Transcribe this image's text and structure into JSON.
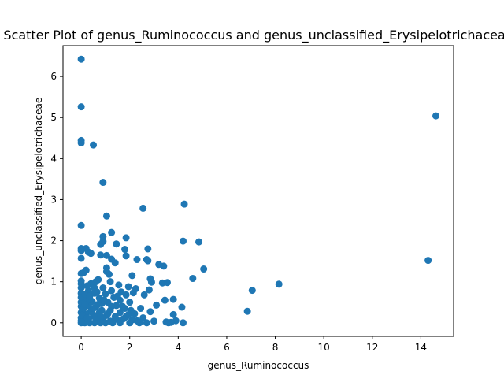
{
  "chart_data": {
    "type": "scatter",
    "title": "Scatter Plot of genus_Ruminococcus and genus_unclassified_Erysipelotrichaceae",
    "xlabel": "genus_Ruminococcus",
    "ylabel": "genus_unclassified_Erysipelotrichaceae",
    "xlim": [
      -0.75,
      15.35
    ],
    "ylim": [
      -0.33,
      6.75
    ],
    "xticks": [
      0,
      2,
      4,
      6,
      8,
      10,
      12,
      14
    ],
    "yticks": [
      0,
      1,
      2,
      3,
      4,
      5,
      6
    ],
    "grid": false,
    "legend": "none",
    "marker_color": "#1f77b4",
    "points": [
      [
        0.0,
        6.42
      ],
      [
        0.0,
        5.26
      ],
      [
        0.0,
        4.44
      ],
      [
        0.0,
        4.38
      ],
      [
        0.5,
        4.33
      ],
      [
        14.62,
        5.04
      ],
      [
        0.9,
        3.42
      ],
      [
        4.25,
        2.89
      ],
      [
        2.55,
        2.79
      ],
      [
        1.05,
        2.6
      ],
      [
        0.0,
        2.37
      ],
      [
        1.25,
        2.2
      ],
      [
        0.9,
        2.1
      ],
      [
        1.85,
        2.07
      ],
      [
        4.2,
        1.99
      ],
      [
        4.85,
        1.97
      ],
      [
        0.9,
        1.98
      ],
      [
        1.45,
        1.92
      ],
      [
        0.8,
        1.91
      ],
      [
        2.75,
        1.8
      ],
      [
        1.8,
        1.79
      ],
      [
        0.0,
        1.81
      ],
      [
        0.2,
        1.81
      ],
      [
        0.0,
        1.76
      ],
      [
        0.3,
        1.72
      ],
      [
        0.4,
        1.69
      ],
      [
        0.8,
        1.65
      ],
      [
        1.05,
        1.64
      ],
      [
        1.85,
        1.63
      ],
      [
        0.0,
        1.57
      ],
      [
        1.25,
        1.55
      ],
      [
        2.3,
        1.54
      ],
      [
        2.7,
        1.54
      ],
      [
        2.75,
        1.51
      ],
      [
        14.3,
        1.52
      ],
      [
        1.4,
        1.46
      ],
      [
        3.2,
        1.42
      ],
      [
        3.4,
        1.38
      ],
      [
        1.05,
        1.34
      ],
      [
        5.05,
        1.31
      ],
      [
        0.2,
        1.28
      ],
      [
        1.05,
        1.25
      ],
      [
        0.1,
        1.22
      ],
      [
        0.0,
        1.2
      ],
      [
        1.15,
        1.18
      ],
      [
        2.1,
        1.15
      ],
      [
        4.6,
        1.08
      ],
      [
        2.85,
        1.07
      ],
      [
        0.7,
        1.05
      ],
      [
        0.6,
        1.0
      ],
      [
        1.2,
        1.0
      ],
      [
        2.9,
        0.99
      ],
      [
        3.35,
        0.97
      ],
      [
        3.55,
        0.98
      ],
      [
        8.15,
        0.94
      ],
      [
        0.4,
        0.95
      ],
      [
        1.55,
        0.92
      ],
      [
        1.95,
        0.88
      ],
      [
        0.9,
        0.85
      ],
      [
        2.25,
        0.83
      ],
      [
        2.8,
        0.8
      ],
      [
        7.05,
        0.79
      ],
      [
        0.3,
        0.78
      ],
      [
        1.25,
        0.78
      ],
      [
        1.65,
        0.75
      ],
      [
        2.15,
        0.73
      ],
      [
        0.55,
        0.72
      ],
      [
        1.0,
        0.7
      ],
      [
        1.85,
        0.68
      ],
      [
        0.2,
        0.66
      ],
      [
        2.6,
        0.68
      ],
      [
        1.35,
        0.62
      ],
      [
        0.75,
        0.6
      ],
      [
        3.8,
        0.57
      ],
      [
        3.45,
        0.55
      ],
      [
        1.6,
        0.55
      ],
      [
        0.1,
        0.55
      ],
      [
        0.45,
        0.52
      ],
      [
        2.0,
        0.5
      ],
      [
        1.1,
        0.5
      ],
      [
        0.85,
        0.47
      ],
      [
        3.1,
        0.43
      ],
      [
        0.3,
        0.42
      ],
      [
        1.45,
        0.42
      ],
      [
        4.15,
        0.38
      ],
      [
        0.6,
        0.38
      ],
      [
        2.45,
        0.35
      ],
      [
        1.8,
        0.35
      ],
      [
        0.05,
        0.32
      ],
      [
        1.2,
        0.3
      ],
      [
        0.4,
        0.29
      ],
      [
        6.85,
        0.28
      ],
      [
        2.85,
        0.27
      ],
      [
        0.75,
        0.25
      ],
      [
        1.6,
        0.25
      ],
      [
        2.2,
        0.22
      ],
      [
        0.2,
        0.21
      ],
      [
        3.8,
        0.2
      ],
      [
        1.05,
        0.18
      ],
      [
        0.5,
        0.16
      ],
      [
        1.85,
        0.15
      ],
      [
        2.55,
        0.12
      ],
      [
        0.0,
        0.12
      ],
      [
        0.9,
        0.1
      ],
      [
        1.45,
        0.09
      ],
      [
        0.3,
        0.08
      ],
      [
        2.1,
        0.07
      ],
      [
        0.65,
        0.06
      ],
      [
        3.0,
        0.04
      ],
      [
        1.2,
        0.04
      ],
      [
        3.9,
        0.05
      ],
      [
        3.5,
        0.02
      ],
      [
        3.6,
        0.0
      ],
      [
        3.7,
        0.01
      ],
      [
        4.2,
        0.0
      ],
      [
        0.0,
        0.0
      ],
      [
        0.15,
        0.0
      ],
      [
        0.35,
        0.0
      ],
      [
        0.55,
        0.0
      ],
      [
        0.8,
        0.0
      ],
      [
        1.0,
        0.0
      ],
      [
        1.3,
        0.0
      ],
      [
        1.6,
        0.0
      ],
      [
        2.0,
        0.0
      ],
      [
        2.4,
        0.0
      ],
      [
        2.7,
        0.0
      ],
      [
        0.0,
        0.05
      ],
      [
        0.0,
        0.25
      ],
      [
        0.0,
        0.4
      ],
      [
        0.0,
        0.5
      ],
      [
        0.0,
        0.62
      ],
      [
        0.0,
        0.72
      ],
      [
        0.0,
        0.85
      ],
      [
        0.0,
        0.95
      ],
      [
        0.0,
        1.02
      ],
      [
        0.05,
        0.18
      ],
      [
        0.1,
        0.35
      ],
      [
        0.15,
        0.45
      ],
      [
        0.25,
        0.12
      ],
      [
        0.35,
        0.58
      ],
      [
        0.45,
        0.25
      ],
      [
        0.6,
        0.15
      ],
      [
        0.7,
        0.45
      ],
      [
        0.85,
        0.3
      ],
      [
        0.95,
        0.55
      ],
      [
        1.1,
        0.22
      ],
      [
        1.25,
        0.4
      ],
      [
        1.4,
        0.15
      ],
      [
        1.7,
        0.4
      ],
      [
        1.95,
        0.2
      ],
      [
        2.3,
        0.05
      ],
      [
        0.25,
        0.9
      ],
      [
        0.55,
        0.85
      ],
      [
        0.15,
        0.7
      ],
      [
        0.65,
        0.75
      ],
      [
        0.35,
        0.65
      ],
      [
        0.8,
        0.15
      ],
      [
        1.5,
        0.65
      ],
      [
        1.75,
        0.1
      ],
      [
        2.05,
        0.3
      ],
      [
        0.5,
        0.35
      ]
    ]
  }
}
